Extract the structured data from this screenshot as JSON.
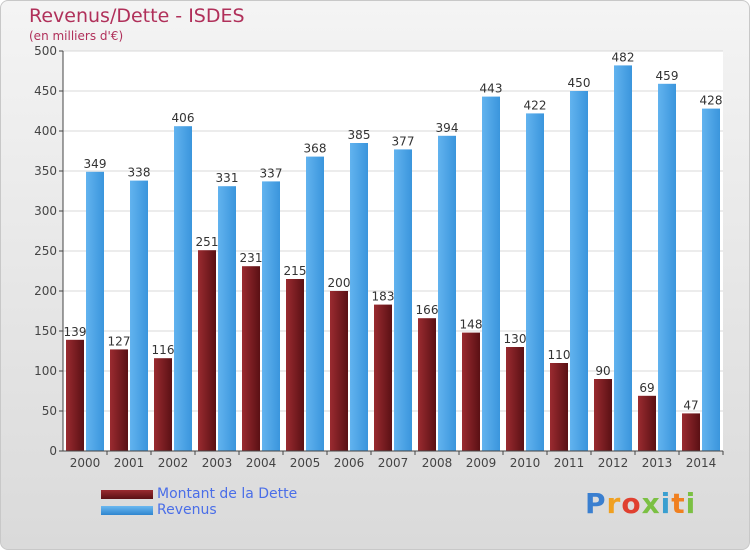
{
  "chart_data": {
    "type": "bar",
    "title": "Revenus/Dette - ISDES",
    "subtitle": "(en milliers d'€)",
    "categories": [
      "2000",
      "2001",
      "2002",
      "2003",
      "2004",
      "2005",
      "2006",
      "2007",
      "2008",
      "2009",
      "2010",
      "2011",
      "2012",
      "2013",
      "2014"
    ],
    "series": [
      {
        "name": "Montant de la Dette",
        "color": "#7a1e22",
        "values": [
          139,
          127,
          116,
          251,
          231,
          215,
          200,
          183,
          166,
          148,
          130,
          110,
          90,
          69,
          47
        ]
      },
      {
        "name": "Revenus",
        "color": "#3f9ee4",
        "values": [
          349,
          338,
          406,
          331,
          337,
          368,
          385,
          377,
          394,
          443,
          422,
          450,
          482,
          459,
          428
        ]
      }
    ],
    "ylim": [
      0,
      500
    ],
    "yticks": [
      0,
      50,
      100,
      150,
      200,
      250,
      300,
      350,
      400,
      450,
      500
    ],
    "grid": true,
    "legend": "bottom-left"
  },
  "logo": {
    "text": "Proxiti",
    "letters": [
      "P",
      "r",
      "o",
      "x",
      "i",
      "t",
      "i"
    ],
    "colors": [
      "#3a7fd0",
      "#f0a020",
      "#e04030",
      "#7bc043",
      "#3a9fd0",
      "#f08020",
      "#7bc043"
    ]
  }
}
